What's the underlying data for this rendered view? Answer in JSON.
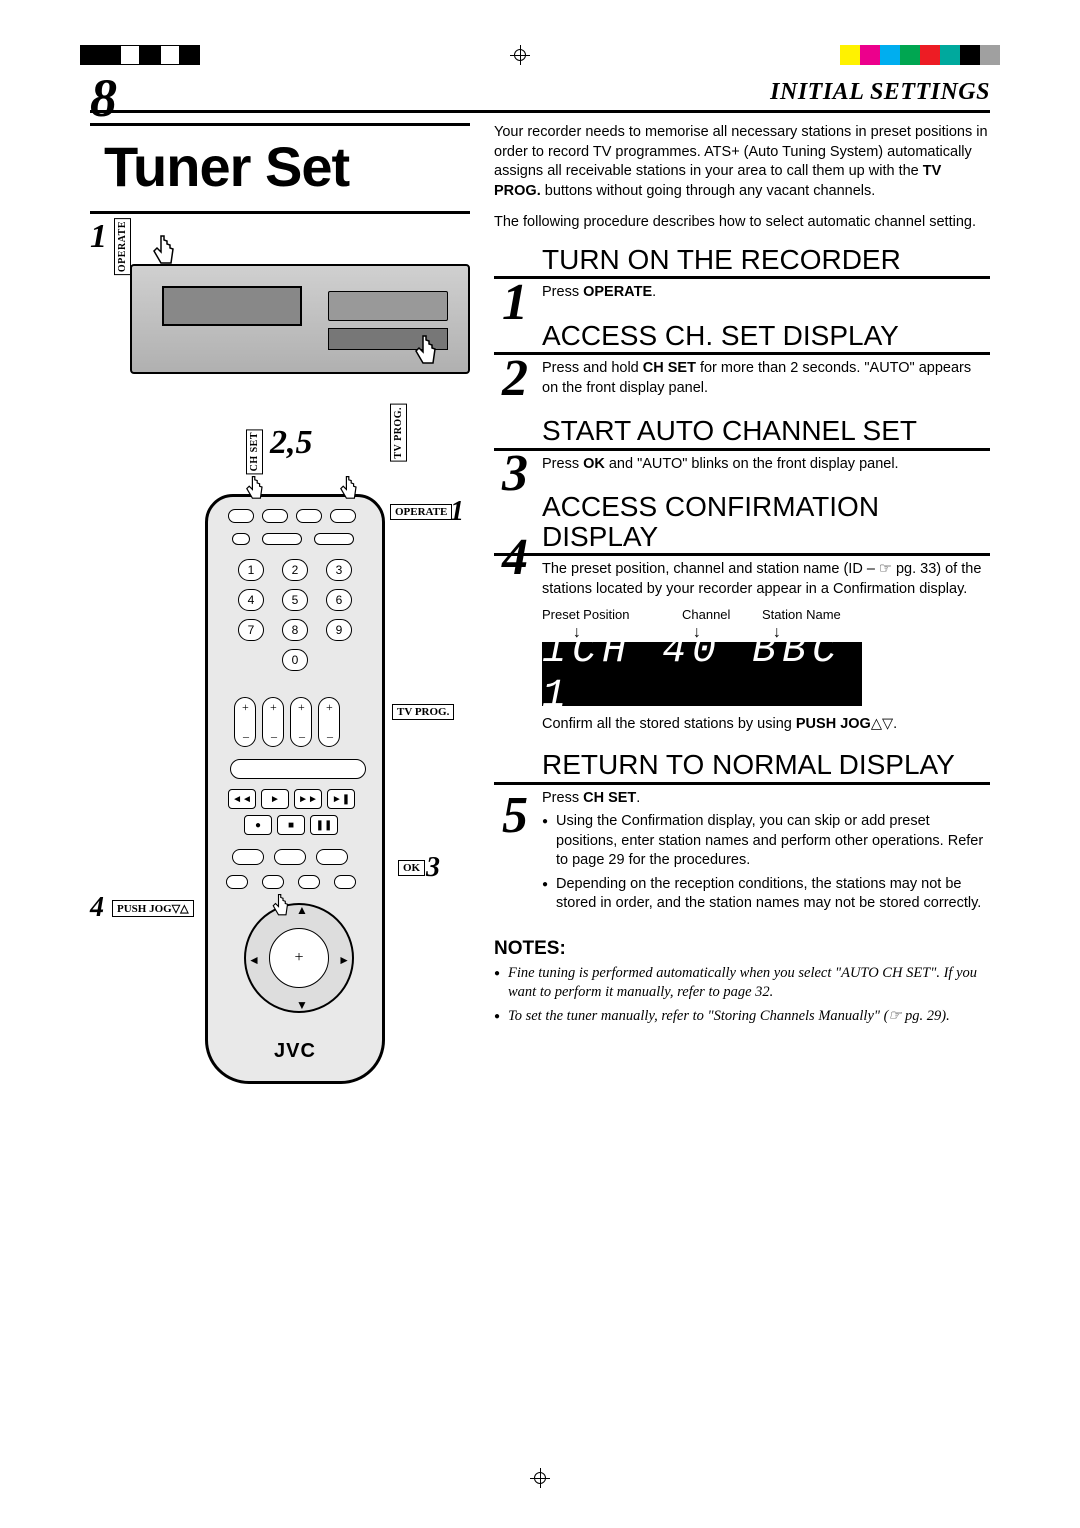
{
  "print_marks": {
    "mono_bars": [
      "#000000",
      "#000000",
      "#ffffff",
      "#000000",
      "#ffffff",
      "#000000"
    ],
    "color_bars": [
      "#fff200",
      "#ec008c",
      "#00aeef",
      "#00a651",
      "#ed1c24",
      "#00a99d",
      "#000000",
      "#a0a0a0"
    ]
  },
  "header": {
    "page_number": "8",
    "section": "INITIAL SETTINGS"
  },
  "title": "Tuner Set",
  "diagram": {
    "labels": {
      "operate_v": "OPERATE",
      "chset_v": "CH SET",
      "tvprog_v": "TV PROG.",
      "operate_h": "OPERATE",
      "tvprog_h": "TV PROG.",
      "ok_h": "OK",
      "pushjog_h": "PUSH JOG▽△"
    },
    "callouts": {
      "c1_top": "1",
      "c25": "2,5",
      "c1_remote": "1",
      "c3": "3",
      "c4": "4"
    },
    "remote": {
      "numpad": [
        "1",
        "2",
        "3",
        "4",
        "5",
        "6",
        "7",
        "8",
        "9",
        "0"
      ],
      "brand": "JVC"
    }
  },
  "intro": {
    "p1_a": "Your recorder needs to memorise all necessary stations in preset positions in order to record TV programmes. ATS+ (Auto Tuning System) automatically assigns all receivable stations in your area to call them up with the ",
    "p1_bold": "TV PROG.",
    "p1_b": " buttons without going through any vacant channels.",
    "p2": "The following procedure describes how to select automatic channel setting."
  },
  "steps": [
    {
      "num": "1",
      "title": "TURN ON THE RECORDER",
      "body_pre": "Press ",
      "body_bold": "OPERATE",
      "body_post": "."
    },
    {
      "num": "2",
      "title": "ACCESS CH. SET DISPLAY",
      "body_pre": "Press and hold ",
      "body_bold": "CH SET",
      "body_post": " for more than 2 seconds. \"AUTO\" appears on the front display panel."
    },
    {
      "num": "3",
      "title": "START AUTO CHANNEL SET",
      "body_pre": "Press ",
      "body_bold": "OK",
      "body_post": " and \"AUTO\" blinks on the front display panel."
    },
    {
      "num": "4",
      "title": "ACCESS CONFIRMATION DISPLAY",
      "body_pre": "The preset position, channel and station name (ID – ☞ pg. 33) of the stations located by your recorder appear in a Confirmation display.",
      "display_labels": [
        "Preset Position",
        "Channel",
        "Station Name"
      ],
      "display_text": "1CH 40 BBC 1",
      "confirm_pre": "Confirm all the stored stations by using ",
      "confirm_bold": "PUSH JOG",
      "confirm_post": "△▽."
    },
    {
      "num": "5",
      "title": "RETURN TO NORMAL DISPLAY",
      "body_pre": "Press ",
      "body_bold": "CH SET",
      "body_post": ".",
      "bullets": [
        "Using the Confirmation display, you can skip or add preset positions, enter station names and perform other operations. Refer to page 29 for the procedures.",
        "Depending on the reception conditions, the stations may not be stored in order, and the station names may not be stored correctly."
      ]
    }
  ],
  "notes": {
    "heading": "NOTES:",
    "items": [
      "Fine tuning is performed automatically when you select \"AUTO CH SET\". If you want to perform it manually, refer to page 32.",
      "To set the tuner manually, refer to \"Storing Channels Manually\" (☞ pg. 29)."
    ]
  }
}
